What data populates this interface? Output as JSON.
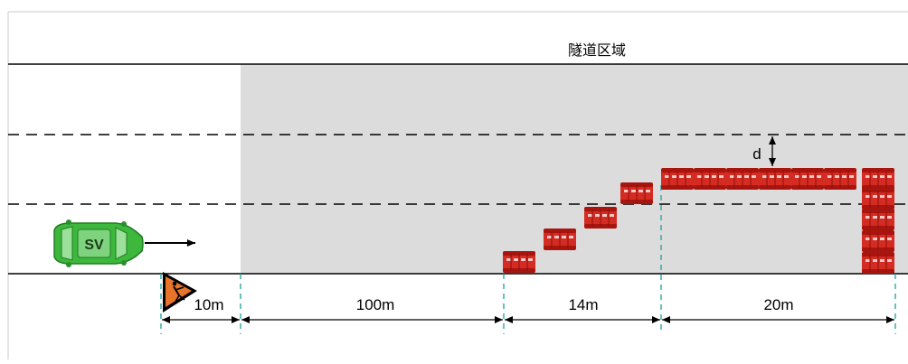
{
  "tunnel_label": "隧道区域",
  "vehicle_label": "SV",
  "gap_label": "d",
  "segments": [
    {
      "label": "10m"
    },
    {
      "label": "100m"
    },
    {
      "label": "14m"
    },
    {
      "label": "20m"
    }
  ],
  "colors": {
    "tunnel_fill": "#dcdcdc",
    "barrier_red": "#d42b22",
    "car_green": "#3db83d",
    "guide_teal": "#2aa7a0",
    "sign_orange": "#e8742a"
  },
  "icons": {
    "vehicle": "car-icon",
    "sign": "road-work-sign-icon",
    "barrier": "water-barrier-icon"
  }
}
